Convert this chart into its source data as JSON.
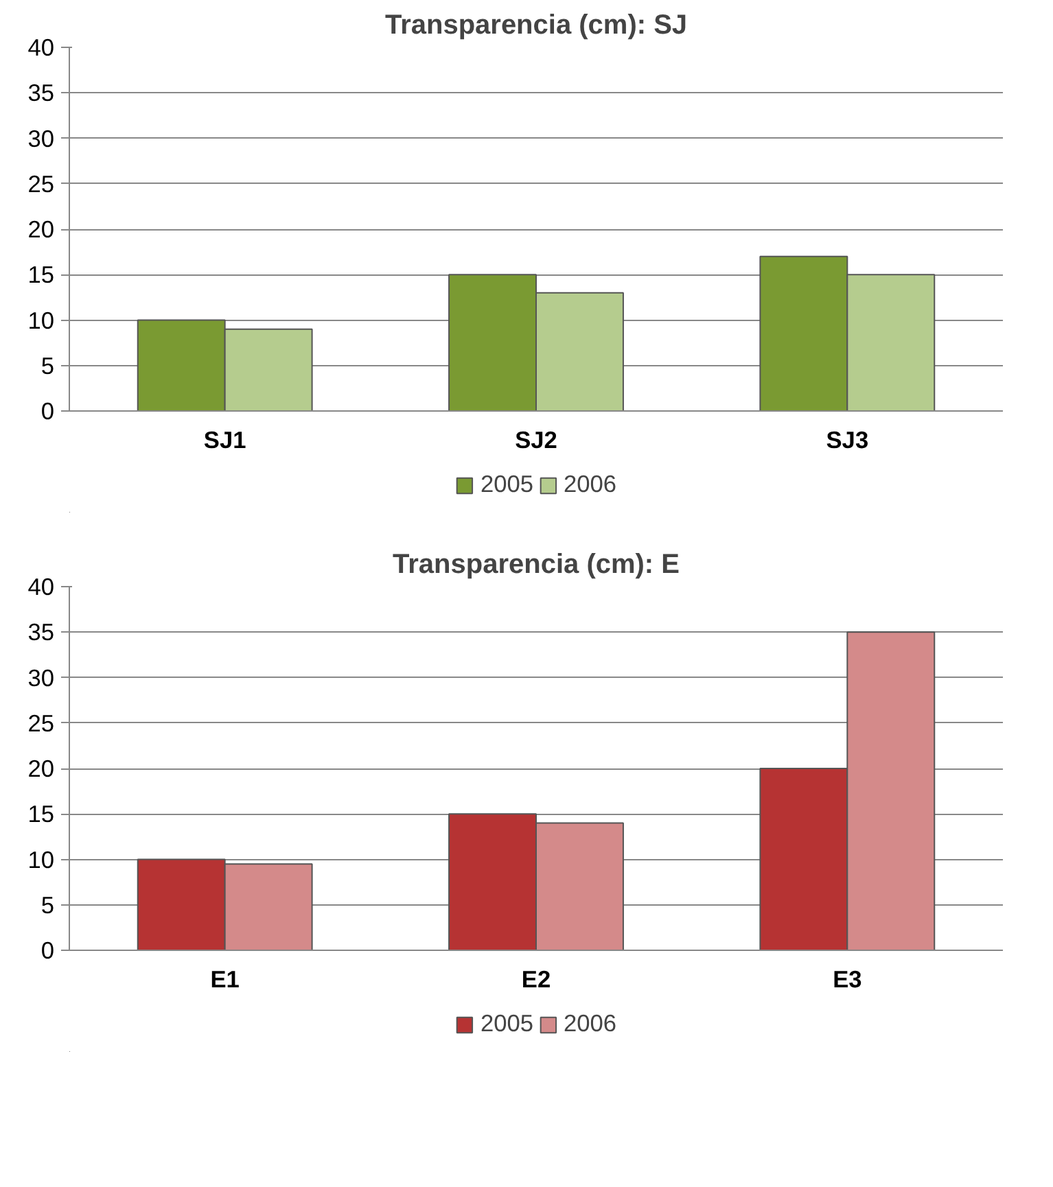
{
  "chart_data": [
    {
      "type": "bar",
      "title": "Transparencia (cm): SJ",
      "categories": [
        "SJ1",
        "SJ2",
        "SJ3"
      ],
      "series": [
        {
          "name": "2005",
          "color": "#7a9a32",
          "values": [
            10,
            15,
            17
          ]
        },
        {
          "name": "2006",
          "color": "#b5cc8e",
          "values": [
            9,
            13,
            15
          ]
        }
      ],
      "ylim": [
        0,
        40
      ],
      "yticks": [
        0,
        5,
        10,
        15,
        20,
        25,
        30,
        35,
        40
      ],
      "grid": "y",
      "legend": "bottom"
    },
    {
      "type": "bar",
      "title": "Transparencia (cm): E",
      "categories": [
        "E1",
        "E2",
        "E3"
      ],
      "series": [
        {
          "name": "2005",
          "color": "#b63333",
          "values": [
            10,
            15,
            20
          ]
        },
        {
          "name": "2006",
          "color": "#d48a8a",
          "values": [
            9.5,
            14,
            35
          ]
        }
      ],
      "ylim": [
        0,
        40
      ],
      "yticks": [
        0,
        5,
        10,
        15,
        20,
        25,
        30,
        35,
        40
      ],
      "grid": "y",
      "legend": "bottom"
    }
  ]
}
